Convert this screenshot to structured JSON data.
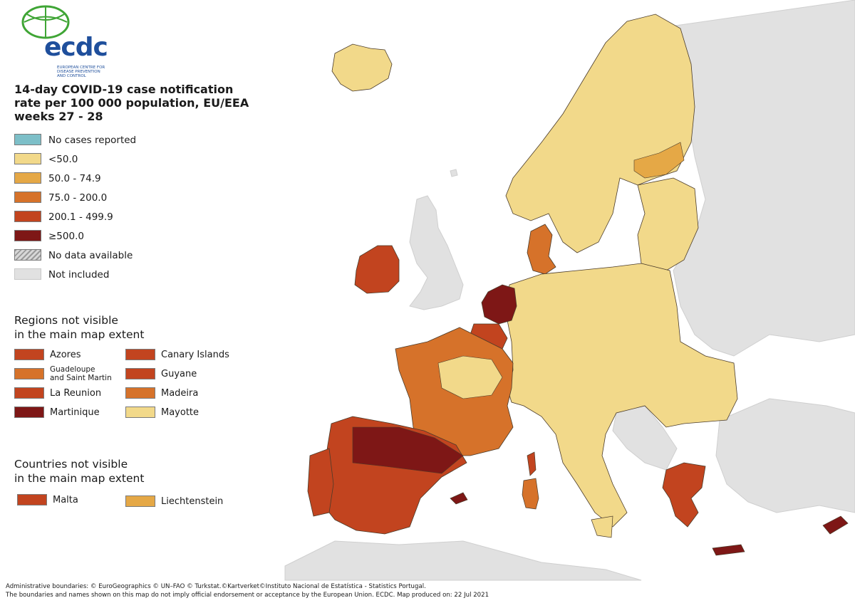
{
  "logo": {
    "text": "ecdc",
    "subtitle": "EUROPEAN CENTRE FOR DISEASE PREVENTION AND CONTROL"
  },
  "title": {
    "line1": "14-day COVID-19 case notification",
    "line2": "rate per 100 000 population, EU/EEA",
    "line3": "weeks 27 - 28"
  },
  "legend": {
    "classes": [
      {
        "label": "No cases reported",
        "color": "#7dbfc8"
      },
      {
        "label": "<50.0",
        "color": "#f2d98a"
      },
      {
        "label": "50.0 - 74.9",
        "color": "#e5a846"
      },
      {
        "label": "75.0 - 200.0",
        "color": "#d6722a"
      },
      {
        "label": "200.1 - 499.9",
        "color": "#c2441f"
      },
      {
        "label": "≥500.0",
        "color": "#7e1716"
      },
      {
        "label": "No data available",
        "color": "hatched"
      },
      {
        "label": "Not included",
        "color": "#e1e1e1"
      }
    ]
  },
  "regions_section": {
    "title_line1": "Regions not visible",
    "title_line2": "in the main map extent",
    "items": [
      {
        "label": "Azores",
        "color": "#c2441f"
      },
      {
        "label": "Canary Islands",
        "color": "#c2441f"
      },
      {
        "label": "Guadeloupe",
        "label2": "and Saint Martin",
        "color": "#d6722a"
      },
      {
        "label": "Guyane",
        "color": "#c2441f"
      },
      {
        "label": "La Reunion",
        "color": "#c2441f"
      },
      {
        "label": "Madeira",
        "color": "#d6722a"
      },
      {
        "label": "Martinique",
        "color": "#7e1716"
      },
      {
        "label": "Mayotte",
        "color": "#f2d98a"
      }
    ]
  },
  "countries_section": {
    "title_line1": "Countries not visible",
    "title_line2": "in the main map extent",
    "items": [
      {
        "label": "Malta",
        "color": "#c2441f"
      },
      {
        "label": "Liechtenstein",
        "color": "#e5a846"
      }
    ]
  },
  "footer": {
    "line1": "Administrative boundaries: © EuroGeographics © UN–FAO © Turkstat.©Kartverket©Instituto Nacional de Estatística - Statistics Portugal.",
    "line2": "The boundaries and names shown on this map do not imply official endorsement or acceptance by the European Union. ECDC. Map produced on: 22 Jul 2021"
  },
  "map": {
    "sea_color": "#ffffff",
    "not_included_color": "#e1e1e1",
    "border_color": "#4a3b2a"
  }
}
